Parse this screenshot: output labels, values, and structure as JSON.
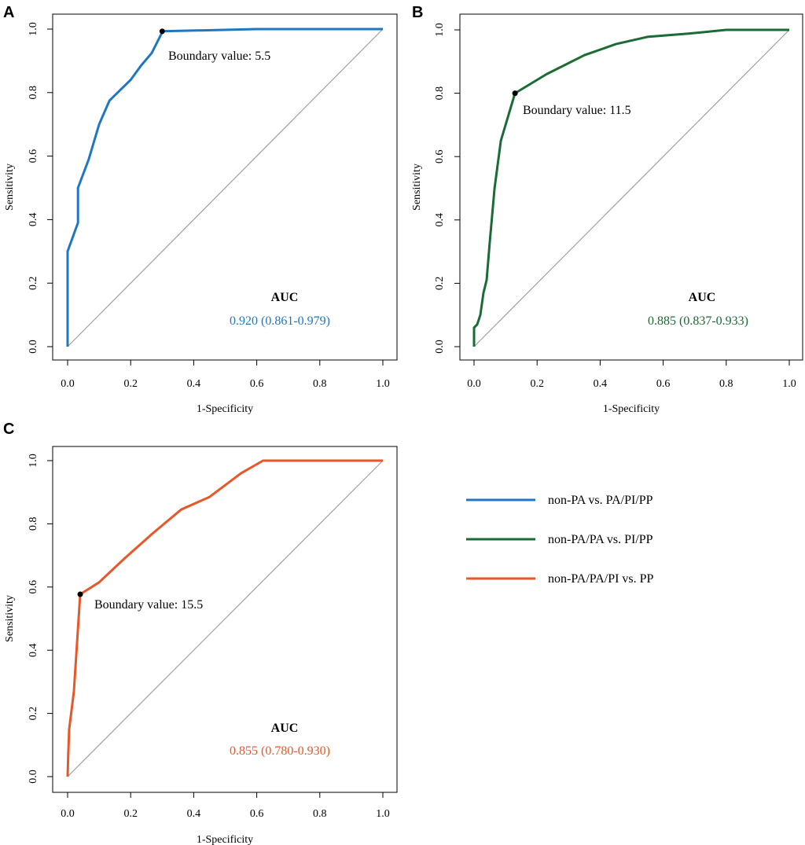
{
  "chart_data": [
    {
      "panel": "A",
      "type": "line",
      "xlabel": "1-Specificity",
      "ylabel": "Sensitivity",
      "xlim": [
        0,
        1
      ],
      "ylim": [
        0,
        1
      ],
      "xticks": [
        "0.0",
        "0.2",
        "0.4",
        "0.6",
        "0.8",
        "1.0"
      ],
      "yticks": [
        "0.0",
        "0.2",
        "0.4",
        "0.6",
        "0.8",
        "1.0"
      ],
      "color": "#1f77c0",
      "series": [
        {
          "name": "non-PA vs. PA/PI/PP",
          "x": [
            0,
            0,
            0.033,
            0.033,
            0.067,
            0.1,
            0.133,
            0.2,
            0.233,
            0.267,
            0.3,
            0.3,
            0.6,
            1.0
          ],
          "y": [
            0,
            0.3,
            0.39,
            0.5,
            0.59,
            0.7,
            0.775,
            0.84,
            0.885,
            0.925,
            0.99,
            0.993,
            1.0,
            1.0
          ]
        }
      ],
      "cutoff_point": {
        "x": 0.3,
        "y": 0.993,
        "label": "Boundary value: 5.5"
      },
      "auc_title": "AUC",
      "auc_text": "0.920 (0.861-0.979)",
      "diagonal": true
    },
    {
      "panel": "B",
      "type": "line",
      "xlabel": "1-Specificity",
      "ylabel": "Sensitivity",
      "xlim": [
        0,
        1
      ],
      "ylim": [
        0,
        1
      ],
      "xticks": [
        "0.0",
        "0.2",
        "0.4",
        "0.6",
        "0.8",
        "1.0"
      ],
      "yticks": [
        "0.0",
        "0.2",
        "0.4",
        "0.6",
        "0.8",
        "1.0"
      ],
      "color": "#1a6b35",
      "series": [
        {
          "name": "non-PA/PA vs. PI/PP",
          "x": [
            0,
            0,
            0.01,
            0.02,
            0.03,
            0.04,
            0.05,
            0.065,
            0.085,
            0.13,
            0.23,
            0.35,
            0.45,
            0.55,
            0.68,
            0.8,
            1.0
          ],
          "y": [
            0,
            0.06,
            0.07,
            0.1,
            0.17,
            0.21,
            0.33,
            0.5,
            0.65,
            0.8,
            0.86,
            0.92,
            0.955,
            0.978,
            0.988,
            1.0,
            1.0
          ]
        }
      ],
      "cutoff_point": {
        "x": 0.13,
        "y": 0.8,
        "label": "Boundary value: 11.5"
      },
      "auc_title": "AUC",
      "auc_text": "0.885 (0.837-0.933)",
      "diagonal": true
    },
    {
      "panel": "C",
      "type": "line",
      "xlabel": "1-Specificity",
      "ylabel": "Sensitivity",
      "xlim": [
        0,
        1
      ],
      "ylim": [
        0,
        1
      ],
      "xticks": [
        "0.0",
        "0.2",
        "0.4",
        "0.6",
        "0.8",
        "1.0"
      ],
      "yticks": [
        "0.0",
        "0.2",
        "0.4",
        "0.6",
        "0.8",
        "1.0"
      ],
      "color": "#e8572a",
      "series": [
        {
          "name": "non-PA/PA/PI vs. PP",
          "x": [
            0,
            0.002,
            0.005,
            0.02,
            0.04,
            0.1,
            0.18,
            0.27,
            0.36,
            0.45,
            0.55,
            0.62,
            1.0
          ],
          "y": [
            0,
            0.07,
            0.15,
            0.27,
            0.577,
            0.615,
            0.69,
            0.77,
            0.845,
            0.885,
            0.96,
            1.0,
            1.0
          ]
        }
      ],
      "cutoff_point": {
        "x": 0.04,
        "y": 0.577,
        "label": "Boundary value: 15.5"
      },
      "auc_title": "AUC",
      "auc_text": "0.855 (0.780-0.930)",
      "diagonal": true
    }
  ],
  "legend": [
    {
      "label": "non-PA vs. PA/PI/PP",
      "color": "#1f77c0"
    },
    {
      "label": "non-PA/PA vs. PI/PP",
      "color": "#1a6b35"
    },
    {
      "label": "non-PA/PA/PI vs. PP",
      "color": "#e8572a"
    }
  ]
}
